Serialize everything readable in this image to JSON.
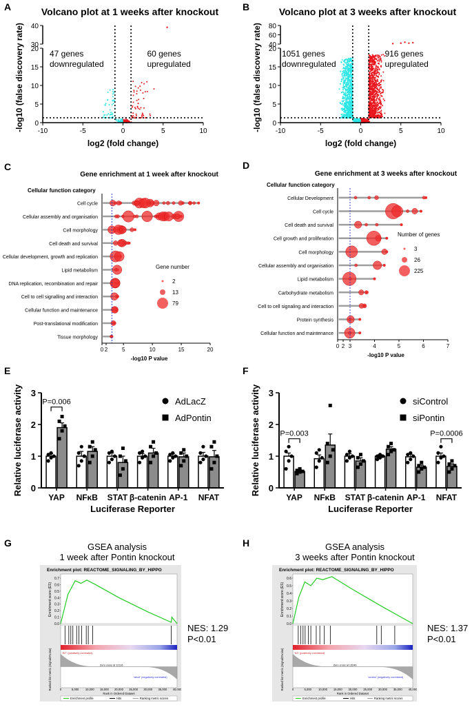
{
  "chart_data": [
    {
      "id": "A",
      "type": "scatter",
      "title": "Volcano plot at 1 weeks after knockout",
      "xlabel": "log2 (fold change)",
      "ylabel": "-log10 (false discovery rate)",
      "xlim": [
        -10,
        10
      ],
      "xticks": [
        "-10",
        "-5",
        "0",
        "5",
        "10"
      ],
      "yticks": [
        "0",
        "5",
        "10",
        "15",
        "20",
        "30",
        "40"
      ],
      "y_axis_break": [
        20,
        30
      ],
      "thresholds": {
        "log2fc": [
          -1,
          1
        ],
        "neg_log10_fdr": 1.3
      },
      "colors": {
        "down": "#2ee6e6",
        "up": "#e8161d"
      },
      "annotations": {
        "down": [
          "47 genes",
          "downregulated"
        ],
        "up": [
          "60 genes",
          "upregulated"
        ]
      },
      "counts": {
        "down": 47,
        "up": 60
      }
    },
    {
      "id": "B",
      "type": "scatter",
      "title": "Volcano plot at 3 weeks after knockout",
      "xlabel": "log2 (fold change)",
      "ylabel": "-log10 (false discovery rate)",
      "xlim": [
        -10,
        10
      ],
      "xticks": [
        "-10",
        "-5",
        "0",
        "5",
        "10"
      ],
      "yticks": [
        "0",
        "5",
        "10",
        "15",
        "20",
        "40",
        "60",
        "80"
      ],
      "y_axis_break": [
        20,
        40
      ],
      "thresholds": {
        "log2fc": [
          -1,
          1
        ],
        "neg_log10_fdr": 1.3
      },
      "colors": {
        "down": "#2ee6e6",
        "up": "#e8161d"
      },
      "annotations": {
        "down": [
          "1051 genes",
          "downregulated"
        ],
        "up": [
          "916 genes",
          "upregulated"
        ]
      },
      "counts": {
        "down": 1051,
        "up": 916
      }
    },
    {
      "id": "C",
      "type": "scatter",
      "title": "Gene enrichment at 1 week after knockout",
      "category_header": "Cellular function category",
      "xlabel": "-log10 P value",
      "xticks": [
        "0",
        "2",
        "5",
        "10",
        "15",
        "20"
      ],
      "threshold": 3,
      "categories": [
        "Cell cycle",
        "Cellular assembly and organisation",
        "Cell morphology",
        "Cell death and survival",
        "Cellular development, growth and replication",
        "Lipid metabolism",
        "DNA replication, recombination and repair",
        "Cell to cell signalling and interaction",
        "Cellular function and maintenance",
        "Post-translational modification",
        "Tissue morphology"
      ],
      "max_values": [
        18,
        15,
        7,
        6,
        4.5,
        4,
        4,
        4,
        3.8,
        3.5,
        3
      ],
      "legend": {
        "title": "Gene number",
        "sizes": [
          "2",
          "13",
          "79"
        ]
      },
      "colors": {
        "dot": "#ee2b2b",
        "bar": "#9e9e9e",
        "threshold": "#3340c0"
      }
    },
    {
      "id": "D",
      "type": "scatter",
      "title": "Gene enrichment at 3 weeks after knockout",
      "category_header": "Cellular function category",
      "xlabel": "-log10 P value",
      "xticks": [
        "0",
        "2",
        "3",
        "4",
        "5",
        "6",
        "7"
      ],
      "threshold": 3,
      "categories": [
        "Cellular Development",
        "Cell cycle",
        "Cell death and survival",
        "Cell growth and proliferation",
        "Cell morphology",
        "Cellular assembly and organisation",
        "Lipid metabolism",
        "Carbohydrate metabolism",
        "Cell to cell signaling and interaction",
        "Protein synthesis",
        "Cellular function and maintenance"
      ],
      "max_values": [
        6.1,
        5.9,
        5.1,
        4.5,
        4.5,
        4.4,
        4.0,
        3.7,
        3.6,
        3.4,
        3.4
      ],
      "legend": {
        "title": "Number of genes",
        "sizes": [
          "3",
          "26",
          "225"
        ]
      },
      "colors": {
        "dot": "#ee2b2b",
        "bar": "#9e9e9e",
        "threshold": "#3340c0"
      }
    },
    {
      "id": "E",
      "type": "bar",
      "xlabel": "Luciferase Reporter",
      "ylabel": "Relative luciferase activity",
      "ylim": [
        0,
        3
      ],
      "yticks": [
        "0",
        "1",
        "2",
        "3"
      ],
      "categories": [
        "YAP",
        "NFκB",
        "STAT",
        "β-catenin",
        "AP-1",
        "NFAT"
      ],
      "series": [
        {
          "name": "AdLacZ",
          "values": [
            1.0,
            1.0,
            1.0,
            1.0,
            1.0,
            1.0
          ],
          "err": [
            0.08,
            0.15,
            0.1,
            0.08,
            0.08,
            0.12
          ],
          "points": [
            [
              0.85,
              0.95,
              1.0,
              1.05,
              1.1
            ],
            [
              0.7,
              0.85,
              1.0,
              1.1,
              1.3
            ],
            [
              0.8,
              0.9,
              1.0,
              1.1,
              1.15
            ],
            [
              0.8,
              0.95,
              1.0,
              1.1,
              1.15
            ],
            [
              0.85,
              0.95,
              1.0,
              1.05,
              1.1
            ],
            [
              0.8,
              0.9,
              1.0,
              1.1,
              1.3
            ]
          ]
        },
        {
          "name": "AdPontin",
          "values": [
            1.9,
            1.15,
            0.8,
            1.1,
            0.98,
            0.98
          ],
          "err": [
            0.15,
            0.15,
            0.2,
            0.15,
            0.12,
            0.2
          ],
          "points": [
            [
              1.55,
              1.8,
              1.95,
              2.1,
              2.25
            ],
            [
              0.8,
              1.0,
              1.2,
              1.3,
              1.45
            ],
            [
              0.4,
              0.6,
              0.85,
              1.0,
              1.25
            ],
            [
              0.8,
              1.0,
              1.1,
              1.3,
              1.45
            ],
            [
              0.7,
              0.85,
              1.0,
              1.1,
              1.2
            ],
            [
              0.6,
              0.8,
              1.0,
              1.3,
              1.45
            ]
          ]
        }
      ],
      "significance": [
        {
          "category": "YAP",
          "label": "P=0.006"
        }
      ],
      "legend_position": "top-right"
    },
    {
      "id": "F",
      "type": "bar",
      "xlabel": "Luciferase Reporter",
      "ylabel": "Relative luciferase activity",
      "ylim": [
        0,
        3
      ],
      "yticks": [
        "0",
        "1",
        "2",
        "3"
      ],
      "categories": [
        "YAP",
        "NFκB",
        "STAT",
        "β-catenin",
        "AP-1",
        "NFAT"
      ],
      "series": [
        {
          "name": "siControl",
          "values": [
            1.0,
            0.92,
            1.0,
            1.0,
            0.98,
            1.0
          ],
          "err": [
            0.1,
            0.12,
            0.08,
            0.05,
            0.08,
            0.1
          ],
          "points": [
            [
              0.6,
              0.85,
              1.0,
              1.15,
              1.3
            ],
            [
              0.65,
              0.85,
              0.95,
              1.1,
              1.2
            ],
            [
              0.85,
              0.95,
              1.0,
              1.05,
              1.15
            ],
            [
              0.9,
              0.95,
              1.0,
              1.0,
              1.05
            ],
            [
              0.8,
              0.9,
              1.0,
              1.05,
              1.1
            ],
            [
              0.8,
              0.95,
              1.0,
              1.1,
              1.3
            ]
          ]
        },
        {
          "name": "siPontin",
          "values": [
            0.52,
            1.35,
            0.85,
            1.22,
            0.65,
            0.68
          ],
          "err": [
            0.05,
            0.35,
            0.1,
            0.08,
            0.07,
            0.08
          ],
          "points": [
            [
              0.45,
              0.5,
              0.52,
              0.55,
              0.6
            ],
            [
              0.8,
              1.0,
              1.2,
              1.4,
              2.6
            ],
            [
              0.65,
              0.75,
              0.85,
              0.95,
              1.05
            ],
            [
              1.05,
              1.15,
              1.2,
              1.3,
              1.4
            ],
            [
              0.5,
              0.6,
              0.65,
              0.7,
              0.8
            ],
            [
              0.5,
              0.6,
              0.7,
              0.75,
              0.85
            ]
          ]
        }
      ],
      "significance": [
        {
          "category": "YAP",
          "label": "P=0.003"
        },
        {
          "category": "NFAT",
          "label": "P=0.0006"
        }
      ],
      "legend_position": "top-right"
    },
    {
      "id": "G",
      "type": "line",
      "heading": [
        "GSEA analysis",
        "1 week after Pontin knockout"
      ],
      "plot_title": "Enrichment plot: REACTOME_SIGNALING_BY_HIPPO",
      "ylabel": "Enrichment score (ES)",
      "xlabel": "Rank in Ordered Dataset",
      "lower_ylabel": "Ranked list metric (Signal2Noise)",
      "xticks": [
        "0",
        "5,000",
        "10,000",
        "15,000",
        "20,000",
        "25,000",
        "30,000",
        "35,000",
        "40,000"
      ],
      "yticks": [
        "0.7",
        "0.6",
        "0.5",
        "0.4",
        "0.3",
        "0.2",
        "0.1",
        "0.0"
      ],
      "es_curve": {
        "x": [
          0,
          2500,
          5000,
          7000,
          9000,
          12000,
          20000,
          30000,
          38000,
          38200,
          40000
        ],
        "y": [
          0.0,
          0.45,
          0.66,
          0.62,
          0.67,
          0.6,
          0.4,
          0.18,
          0.02,
          0.1,
          0.0
        ]
      },
      "hits_x": [
        1500,
        2800,
        3500,
        4200,
        5500,
        6300,
        7200,
        8800,
        9500,
        11000,
        38000
      ],
      "pos_label": "'WT' (positively correlated)",
      "neg_label": "'wtcof' (negatively correlated)",
      "zero_cross": "Zero cross at 12116",
      "legend": [
        "Enrichment profile",
        "Hits",
        "Ranking metric scores"
      ],
      "nes": "NES: 1.29",
      "pval": "P<0.01"
    },
    {
      "id": "H",
      "type": "line",
      "heading": [
        "GSEA analysis",
        "3 weeks after Pontin knockout"
      ],
      "plot_title": "Enrichment plot: REACTOME_SIGNALING_BY_HIPPO",
      "ylabel": "Enrichment score (ES)",
      "xlabel": "Rank in Ordered Dataset",
      "lower_ylabel": "Ranked list metric (Signal2Noise)",
      "xticks": [
        "0",
        "5,000",
        "10,000",
        "15,000",
        "20,000",
        "25,000",
        "30,000",
        "35,000",
        "40,000"
      ],
      "yticks": [
        "0.6",
        "0.5",
        "0.4",
        "0.3",
        "0.2",
        "0.1",
        "0.0"
      ],
      "es_curve": {
        "x": [
          0,
          2000,
          4000,
          6000,
          8000,
          10000,
          13000,
          20000,
          30000,
          40000
        ],
        "y": [
          0.0,
          0.35,
          0.55,
          0.5,
          0.6,
          0.58,
          0.62,
          0.45,
          0.22,
          0.0
        ]
      },
      "hits_x": [
        1800,
        2600,
        3400,
        4100,
        5200,
        6000,
        7800,
        9000,
        10500,
        12500,
        28000,
        29500,
        34000
      ],
      "pos_label": "'KO' (positively correlated)",
      "neg_label": "'control' (negatively correlated)",
      "zero_cross": "Zero cross at 13246",
      "legend": [
        "Enrichment profile",
        "Hits",
        "Ranking metric scores"
      ],
      "nes": "NES: 1.37",
      "pval": "P<0.01"
    }
  ],
  "panel_labels": [
    "A",
    "B",
    "C",
    "D",
    "E",
    "F",
    "G",
    "H"
  ]
}
